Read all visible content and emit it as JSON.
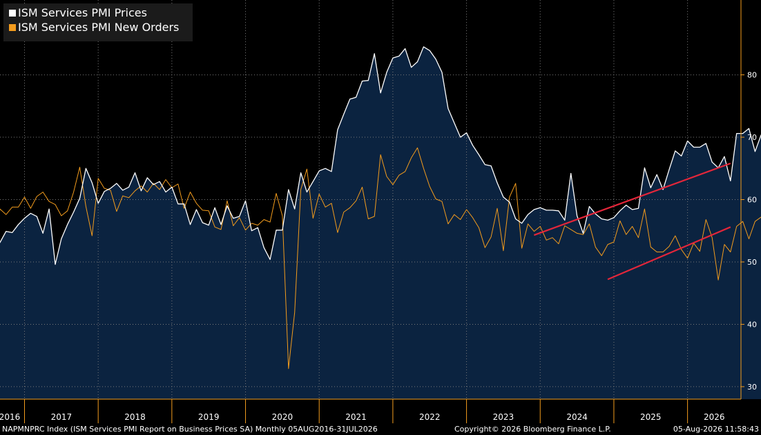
{
  "chart_data": {
    "type": "line",
    "x_start": "2016-08",
    "x_end": "2026-07",
    "ylim": [
      28,
      92
    ],
    "yticks": [
      30,
      40,
      50,
      60,
      70,
      80
    ],
    "grid": true,
    "legend_position": "top-left",
    "x_tick_labels": [
      "2016",
      "2017",
      "2018",
      "2019",
      "2020",
      "2021",
      "2022",
      "2023",
      "2024",
      "2025",
      "2026"
    ],
    "series": [
      {
        "name": "ISM Services PMI Prices",
        "color": "#ffffff",
        "fill": "#0b2340",
        "values": [
          52.3,
          53.1,
          54.9,
          54.7,
          56.0,
          57.0,
          57.8,
          57.3,
          54.6,
          58.5,
          49.6,
          53.7,
          56.0,
          58.0,
          60.2,
          65.0,
          62.7,
          59.4,
          61.3,
          61.8,
          62.6,
          61.5,
          62.0,
          64.3,
          61.4,
          63.5,
          62.4,
          62.9,
          61.2,
          62.0,
          59.3,
          59.3,
          56.0,
          58.4,
          56.3,
          55.9,
          58.7,
          56.0,
          59.0,
          57.0,
          57.3,
          59.8,
          55.0,
          55.5,
          52.3,
          50.4,
          55.1,
          55.1,
          61.6,
          58.5,
          64.3,
          61.2,
          62.9,
          64.6,
          65.0,
          64.5,
          71.2,
          73.7,
          76.1,
          76.4,
          79.0,
          79.1,
          83.4,
          77.1,
          80.4,
          82.7,
          83.0,
          84.2,
          81.2,
          82.1,
          84.5,
          83.9,
          82.5,
          80.4,
          74.6,
          72.3,
          70.0,
          70.7,
          68.7,
          67.2,
          65.6,
          65.4,
          62.7,
          60.4,
          59.6,
          56.9,
          56.2,
          57.6,
          58.4,
          58.7,
          58.3,
          58.3,
          58.2,
          56.7,
          64.2,
          57.4,
          54.6,
          58.9,
          57.7,
          56.9,
          56.7,
          57.1,
          58.2,
          59.1,
          58.4,
          58.6,
          65.1,
          61.9,
          64.0,
          61.6,
          64.8,
          67.8,
          67.0,
          69.4,
          68.4,
          68.4,
          69.0,
          66.0,
          65.1,
          66.9,
          63.0,
          70.6,
          70.6,
          71.4,
          67.7,
          70.4
        ]
      },
      {
        "name": "ISM Services PMI New Orders",
        "color": "#f39c1d",
        "fill": null,
        "values": [
          51.4,
          58.5,
          57.6,
          58.8,
          58.8,
          60.4,
          58.6,
          60.5,
          61.2,
          59.7,
          59.2,
          57.4,
          58.2,
          61.2,
          65.2,
          58.9,
          54.2,
          63.4,
          61.8,
          61.5,
          58.1,
          60.6,
          60.3,
          61.4,
          62.2,
          61.2,
          62.6,
          61.6,
          63.2,
          61.9,
          62.5,
          58.6,
          61.2,
          59.4,
          58.3,
          58.2,
          55.6,
          55.2,
          59.8,
          55.8,
          57.1,
          55.1,
          56.2,
          55.9,
          56.8,
          56.4,
          61.0,
          57.4,
          32.9,
          41.9,
          61.6,
          64.9,
          57.0,
          60.9,
          58.8,
          59.4,
          54.7,
          58.0,
          58.7,
          59.8,
          62.0,
          56.9,
          57.3,
          67.2,
          63.7,
          62.4,
          63.9,
          64.5,
          66.7,
          68.3,
          65.0,
          62.1,
          60.1,
          59.7,
          56.1,
          57.6,
          56.8,
          58.4,
          57.1,
          55.5,
          52.3,
          54.0,
          58.6,
          51.8,
          60.4,
          62.6,
          52.2,
          56.1,
          54.9,
          55.7,
          53.5,
          53.9,
          52.9,
          55.8,
          55.2,
          54.6,
          54.4,
          56.1,
          52.4,
          51.0,
          52.8,
          53.2,
          56.6,
          54.4,
          55.7,
          53.9,
          58.5,
          52.4,
          51.6,
          51.6,
          52.5,
          54.2,
          52.0,
          50.6,
          53.0,
          51.7,
          56.8,
          53.9,
          47.1,
          52.8,
          51.6,
          55.7,
          56.5,
          53.7,
          56.5,
          57.2
        ]
      }
    ],
    "annotations": [
      {
        "type": "trendline",
        "color": "#e3263a",
        "from": {
          "x": "2023-12",
          "y": 54.3
        },
        "to": {
          "x": "2026-08",
          "y": 65.8
        }
      },
      {
        "type": "trendline",
        "color": "#e3263a",
        "from": {
          "x": "2024-12",
          "y": 47.2
        },
        "to": {
          "x": "2026-08",
          "y": 55.6
        }
      }
    ]
  },
  "footer": {
    "left": "NAPMNPRC Index (ISM Services PMI Report on Business Prices SA) Monthly 05AUG2016-31JUL2026",
    "center": "Copyright© 2026 Bloomberg Finance L.P.",
    "right": "05-Aug-2026 11:58:43"
  },
  "colors": {
    "background": "#000000",
    "axis": "#f39c1d",
    "grid": "#7a7a7a",
    "area": "#0b2340"
  }
}
